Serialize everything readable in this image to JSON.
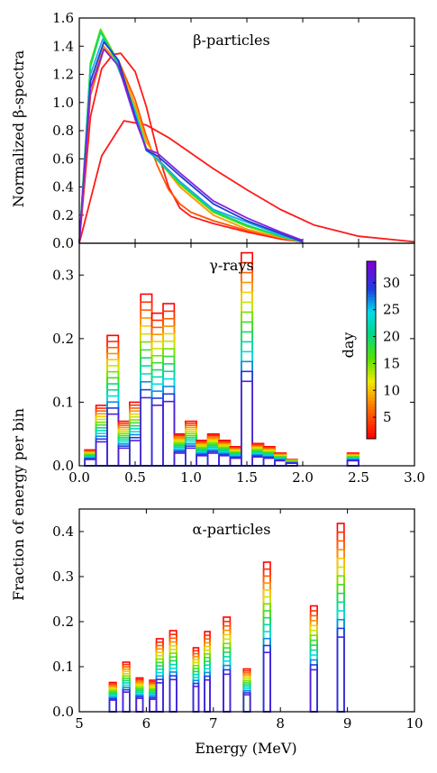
{
  "chart_data": [
    {
      "type": "line",
      "title": "β-particles",
      "ylabel": "Normalized β-spectra",
      "xlabel": "",
      "xlim": [
        0,
        3
      ],
      "ylim": [
        0,
        1.6
      ],
      "yticks": [
        "0.0",
        "0.2",
        "0.4",
        "0.6",
        "0.8",
        "1.0",
        "1.2",
        "1.4",
        "1.6"
      ],
      "series": [
        {
          "color": "#ff1a1a",
          "x": [
            0,
            0.2,
            0.4,
            0.6,
            0.8,
            1.0,
            1.2,
            1.5,
            1.8,
            2.1,
            2.5,
            3.0
          ],
          "y": [
            0,
            0.62,
            0.87,
            0.84,
            0.75,
            0.64,
            0.53,
            0.38,
            0.24,
            0.13,
            0.05,
            0.01
          ]
        },
        {
          "color": "#ff1a1a",
          "x": [
            0,
            0.1,
            0.2,
            0.3,
            0.37,
            0.5,
            0.6,
            0.7,
            0.8,
            0.9,
            1.0,
            1.2,
            1.5,
            1.8,
            2.0
          ],
          "y": [
            0,
            0.9,
            1.24,
            1.34,
            1.35,
            1.22,
            0.97,
            0.65,
            0.4,
            0.25,
            0.19,
            0.14,
            0.08,
            0.03,
            0.01
          ]
        },
        {
          "color": "#ff5500",
          "x": [
            0,
            0.1,
            0.22,
            0.35,
            0.5,
            0.6,
            0.7,
            0.8,
            0.9,
            1.0,
            1.2,
            1.5,
            1.8,
            2.0
          ],
          "y": [
            0,
            1.05,
            1.38,
            1.3,
            1.02,
            0.76,
            0.55,
            0.38,
            0.28,
            0.22,
            0.16,
            0.09,
            0.04,
            0.01
          ]
        },
        {
          "color": "#ff9900",
          "x": [
            0,
            0.1,
            0.22,
            0.35,
            0.5,
            0.6,
            0.7,
            0.9,
            1.2,
            1.5,
            1.8,
            2.0
          ],
          "y": [
            0,
            1.1,
            1.4,
            1.28,
            0.98,
            0.72,
            0.6,
            0.4,
            0.2,
            0.1,
            0.04,
            0.01
          ]
        },
        {
          "color": "#d4e000",
          "x": [
            0,
            0.1,
            0.19,
            0.3,
            0.5,
            0.6,
            0.7,
            0.9,
            1.2,
            1.5,
            1.8,
            2.0
          ],
          "y": [
            0,
            1.25,
            1.5,
            1.35,
            0.95,
            0.68,
            0.6,
            0.42,
            0.22,
            0.12,
            0.05,
            0.01
          ]
        },
        {
          "color": "#55dd00",
          "x": [
            0,
            0.1,
            0.19,
            0.3,
            0.5,
            0.6,
            0.7,
            0.9,
            1.2,
            1.5,
            1.8,
            2.0
          ],
          "y": [
            0,
            1.28,
            1.52,
            1.36,
            0.94,
            0.67,
            0.59,
            0.42,
            0.22,
            0.12,
            0.05,
            0.01
          ]
        },
        {
          "color": "#00dd77",
          "x": [
            0,
            0.1,
            0.19,
            0.3,
            0.5,
            0.6,
            0.7,
            0.9,
            1.2,
            1.5,
            1.8,
            2.0
          ],
          "y": [
            0,
            1.26,
            1.5,
            1.34,
            0.94,
            0.67,
            0.59,
            0.43,
            0.23,
            0.13,
            0.05,
            0.01
          ]
        },
        {
          "color": "#22aaee",
          "x": [
            0,
            0.1,
            0.21,
            0.33,
            0.5,
            0.6,
            0.7,
            0.9,
            1.2,
            1.5,
            1.8,
            2.0
          ],
          "y": [
            0,
            1.2,
            1.45,
            1.32,
            0.92,
            0.66,
            0.6,
            0.44,
            0.24,
            0.15,
            0.06,
            0.01
          ]
        },
        {
          "color": "#1a3fd0",
          "x": [
            0,
            0.1,
            0.22,
            0.35,
            0.5,
            0.6,
            0.7,
            0.9,
            1.2,
            1.5,
            1.8,
            2.0
          ],
          "y": [
            0,
            1.15,
            1.43,
            1.3,
            0.9,
            0.66,
            0.62,
            0.48,
            0.28,
            0.16,
            0.07,
            0.01
          ]
        },
        {
          "color": "#8822dd",
          "x": [
            0,
            0.1,
            0.22,
            0.35,
            0.5,
            0.6,
            0.7,
            0.9,
            1.2,
            1.5,
            1.8,
            2.0
          ],
          "y": [
            0,
            1.1,
            1.38,
            1.26,
            0.88,
            0.67,
            0.64,
            0.5,
            0.3,
            0.18,
            0.08,
            0.02
          ]
        }
      ]
    },
    {
      "type": "bar",
      "title": "γ-rays",
      "ylabel": "Fraction of energy per bin",
      "xlabel": "",
      "xlim": [
        0,
        3.0
      ],
      "ylim": [
        0,
        0.35
      ],
      "xticks": [
        "0.0",
        "0.5",
        "1.0",
        "1.5",
        "2.0",
        "2.5",
        "3.0"
      ],
      "yticks": [
        "0.0",
        "0.1",
        "0.2",
        "0.3"
      ],
      "colorbar": {
        "label": "day",
        "range": [
          1,
          34
        ],
        "ticks": [
          "5",
          "10",
          "15",
          "20",
          "25",
          "30"
        ]
      },
      "bars": [
        {
          "x0": 0.05,
          "x1": 0.15,
          "max": 0.025
        },
        {
          "x0": 0.15,
          "x1": 0.25,
          "max": 0.095
        },
        {
          "x0": 0.25,
          "x1": 0.35,
          "max": 0.205
        },
        {
          "x0": 0.35,
          "x1": 0.45,
          "max": 0.07
        },
        {
          "x0": 0.45,
          "x1": 0.55,
          "max": 0.1
        },
        {
          "x0": 0.55,
          "x1": 0.65,
          "max": 0.27
        },
        {
          "x0": 0.65,
          "x1": 0.75,
          "max": 0.24
        },
        {
          "x0": 0.75,
          "x1": 0.85,
          "max": 0.255
        },
        {
          "x0": 0.85,
          "x1": 0.95,
          "max": 0.05
        },
        {
          "x0": 0.95,
          "x1": 1.05,
          "max": 0.07
        },
        {
          "x0": 1.05,
          "x1": 1.15,
          "max": 0.04
        },
        {
          "x0": 1.15,
          "x1": 1.25,
          "max": 0.05
        },
        {
          "x0": 1.25,
          "x1": 1.35,
          "max": 0.04
        },
        {
          "x0": 1.35,
          "x1": 1.45,
          "max": 0.03
        },
        {
          "x0": 1.45,
          "x1": 1.55,
          "max": 0.335
        },
        {
          "x0": 1.55,
          "x1": 1.65,
          "max": 0.035
        },
        {
          "x0": 1.65,
          "x1": 1.75,
          "max": 0.03
        },
        {
          "x0": 1.75,
          "x1": 1.85,
          "max": 0.02
        },
        {
          "x0": 1.85,
          "x1": 1.95,
          "max": 0.01
        },
        {
          "x0": 2.4,
          "x1": 2.5,
          "max": 0.02
        }
      ]
    },
    {
      "type": "bar",
      "title": "α-particles",
      "ylabel": "",
      "xlabel": "Energy (MeV)",
      "xlim": [
        5,
        10
      ],
      "ylim": [
        0,
        0.45
      ],
      "xticks": [
        "5",
        "6",
        "7",
        "8",
        "9",
        "10"
      ],
      "yticks": [
        "0.0",
        "0.1",
        "0.2",
        "0.3",
        "0.4"
      ],
      "bars": [
        {
          "x0": 5.45,
          "x1": 5.55,
          "max": 0.065
        },
        {
          "x0": 5.65,
          "x1": 5.75,
          "max": 0.11
        },
        {
          "x0": 5.85,
          "x1": 5.95,
          "max": 0.075
        },
        {
          "x0": 6.05,
          "x1": 6.15,
          "max": 0.07
        },
        {
          "x0": 6.15,
          "x1": 6.25,
          "max": 0.162
        },
        {
          "x0": 6.35,
          "x1": 6.45,
          "max": 0.18
        },
        {
          "x0": 6.7,
          "x1": 6.78,
          "max": 0.142
        },
        {
          "x0": 6.87,
          "x1": 6.95,
          "max": 0.178
        },
        {
          "x0": 7.15,
          "x1": 7.25,
          "max": 0.21
        },
        {
          "x0": 7.45,
          "x1": 7.55,
          "max": 0.095
        },
        {
          "x0": 7.75,
          "x1": 7.85,
          "max": 0.332
        },
        {
          "x0": 8.45,
          "x1": 8.55,
          "max": 0.235
        },
        {
          "x0": 8.85,
          "x1": 8.95,
          "max": 0.418
        }
      ]
    }
  ]
}
